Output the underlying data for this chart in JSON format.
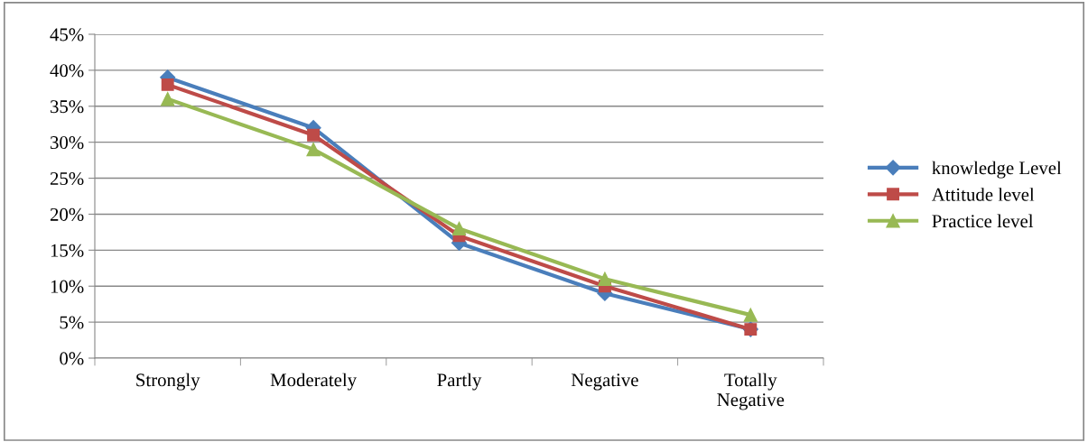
{
  "chart_data": {
    "type": "line",
    "categories": [
      "Strongly",
      "Moderately",
      "Partly",
      "Negative",
      "Totally\nNegative"
    ],
    "series": [
      {
        "name": "knowledge Level",
        "color": "#4a7ebb",
        "marker": "diamond",
        "values": [
          39,
          32,
          16,
          9,
          4
        ]
      },
      {
        "name": "Attitude level",
        "color": "#be4b48",
        "marker": "square",
        "values": [
          38,
          31,
          17,
          10,
          4
        ]
      },
      {
        "name": "Practice level",
        "color": "#98b954",
        "marker": "triangle",
        "values": [
          36,
          29,
          18,
          11,
          6
        ]
      }
    ],
    "ylim": [
      0,
      45
    ],
    "yticks": [
      {
        "value": 0,
        "label": "0%"
      },
      {
        "value": 5,
        "label": "5%"
      },
      {
        "value": 10,
        "label": "10%"
      },
      {
        "value": 15,
        "label": "15%"
      },
      {
        "value": 20,
        "label": "20%"
      },
      {
        "value": 25,
        "label": "25%"
      },
      {
        "value": 30,
        "label": "30%"
      },
      {
        "value": 35,
        "label": "35%"
      },
      {
        "value": 40,
        "label": "40%"
      },
      {
        "value": 45,
        "label": "45%"
      }
    ],
    "grid": "y",
    "legend": "right",
    "line_style": "solid"
  }
}
